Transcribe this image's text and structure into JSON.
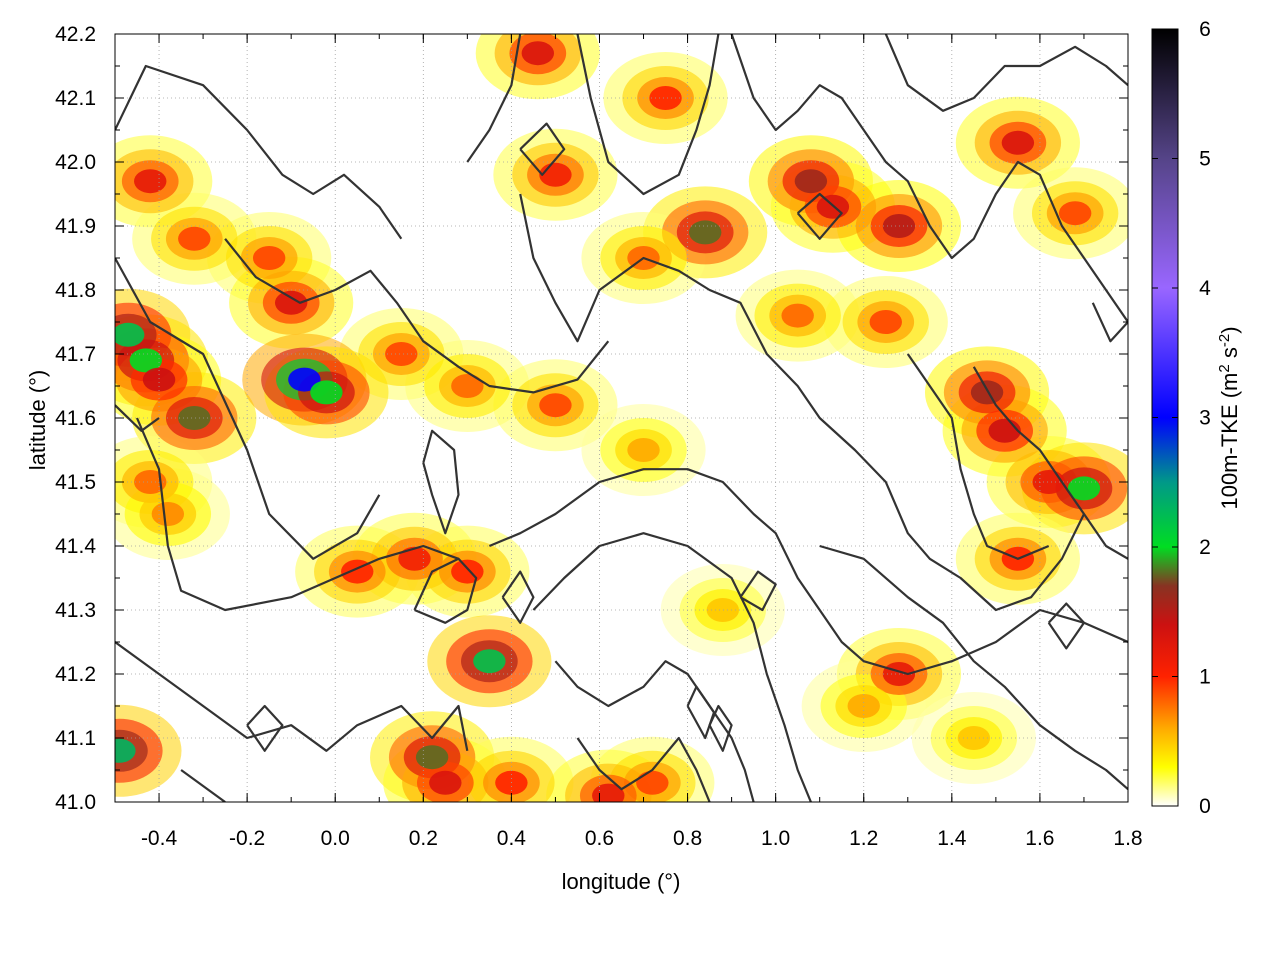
{
  "chart_data": {
    "type": "heatmap",
    "title": "",
    "xlabel": "longitude (°)",
    "ylabel": "latitude (°)",
    "xlim": [
      -0.5,
      1.8
    ],
    "ylim": [
      41.0,
      42.2
    ],
    "x_ticks": [
      "-0.4",
      "-0.2",
      "0.0",
      "0.2",
      "0.4",
      "0.6",
      "0.8",
      "1.0",
      "1.2",
      "1.4",
      "1.6",
      "1.8"
    ],
    "y_ticks": [
      "41.0",
      "41.1",
      "41.2",
      "41.3",
      "41.4",
      "41.5",
      "41.6",
      "41.7",
      "41.8",
      "41.9",
      "42.0",
      "42.1",
      "42.2"
    ],
    "grid": true,
    "colorbar": {
      "label_main": "100m-TKE (m",
      "label_sup1": "2",
      "label_mid": " s",
      "label_sup2": "-2",
      "label_end": ")",
      "range": [
        0,
        6
      ],
      "ticks": [
        "0",
        "1",
        "2",
        "3",
        "4",
        "5",
        "6"
      ],
      "stops": [
        {
          "value": 0.0,
          "color": "#ffffff"
        },
        {
          "value": 0.3,
          "color": "#ffff00"
        },
        {
          "value": 0.6,
          "color": "#ffaa00"
        },
        {
          "value": 1.0,
          "color": "#ff2200"
        },
        {
          "value": 1.4,
          "color": "#cc1111"
        },
        {
          "value": 1.7,
          "color": "#883322"
        },
        {
          "value": 2.0,
          "color": "#00dd22"
        },
        {
          "value": 2.5,
          "color": "#009988"
        },
        {
          "value": 3.0,
          "color": "#0000ff"
        },
        {
          "value": 4.0,
          "color": "#9966ff"
        },
        {
          "value": 5.0,
          "color": "#554488"
        },
        {
          "value": 6.0,
          "color": "#000000"
        }
      ]
    },
    "hotspots": [
      {
        "lon": -0.42,
        "lat": 41.97,
        "value": 1.2
      },
      {
        "lon": -0.32,
        "lat": 41.88,
        "value": 0.9
      },
      {
        "lon": -0.15,
        "lat": 41.85,
        "value": 0.9
      },
      {
        "lon": -0.1,
        "lat": 41.78,
        "value": 1.3
      },
      {
        "lon": 0.15,
        "lat": 41.7,
        "value": 0.9
      },
      {
        "lon": 0.3,
        "lat": 41.65,
        "value": 0.8
      },
      {
        "lon": -0.47,
        "lat": 41.73,
        "value": 2.2
      },
      {
        "lon": -0.43,
        "lat": 41.69,
        "value": 2.0
      },
      {
        "lon": -0.4,
        "lat": 41.66,
        "value": 1.4
      },
      {
        "lon": -0.32,
        "lat": 41.6,
        "value": 1.8
      },
      {
        "lon": -0.42,
        "lat": 41.5,
        "value": 0.8
      },
      {
        "lon": -0.38,
        "lat": 41.45,
        "value": 0.7
      },
      {
        "lon": -0.07,
        "lat": 41.66,
        "value": 3.0
      },
      {
        "lon": -0.02,
        "lat": 41.64,
        "value": 2.0
      },
      {
        "lon": 0.5,
        "lat": 41.62,
        "value": 0.9
      },
      {
        "lon": 0.7,
        "lat": 41.55,
        "value": 0.6
      },
      {
        "lon": 0.05,
        "lat": 41.36,
        "value": 1.0
      },
      {
        "lon": 0.18,
        "lat": 41.38,
        "value": 1.1
      },
      {
        "lon": 0.3,
        "lat": 41.36,
        "value": 1.0
      },
      {
        "lon": 0.35,
        "lat": 41.22,
        "value": 2.2
      },
      {
        "lon": 0.22,
        "lat": 41.07,
        "value": 1.8
      },
      {
        "lon": 0.25,
        "lat": 41.03,
        "value": 1.3
      },
      {
        "lon": 0.4,
        "lat": 41.03,
        "value": 1.0
      },
      {
        "lon": -0.49,
        "lat": 41.08,
        "value": 2.3
      },
      {
        "lon": 0.46,
        "lat": 42.17,
        "value": 1.3
      },
      {
        "lon": 0.5,
        "lat": 41.98,
        "value": 1.1
      },
      {
        "lon": 0.75,
        "lat": 42.1,
        "value": 1.0
      },
      {
        "lon": 0.84,
        "lat": 41.89,
        "value": 1.8
      },
      {
        "lon": 0.7,
        "lat": 41.85,
        "value": 0.8
      },
      {
        "lon": 1.08,
        "lat": 41.97,
        "value": 1.6
      },
      {
        "lon": 1.13,
        "lat": 41.93,
        "value": 1.3
      },
      {
        "lon": 1.28,
        "lat": 41.9,
        "value": 1.5
      },
      {
        "lon": 1.25,
        "lat": 41.75,
        "value": 0.9
      },
      {
        "lon": 1.05,
        "lat": 41.76,
        "value": 0.8
      },
      {
        "lon": 1.55,
        "lat": 42.03,
        "value": 1.3
      },
      {
        "lon": 1.68,
        "lat": 41.92,
        "value": 0.9
      },
      {
        "lon": 1.48,
        "lat": 41.64,
        "value": 1.6
      },
      {
        "lon": 1.52,
        "lat": 41.58,
        "value": 1.4
      },
      {
        "lon": 1.62,
        "lat": 41.5,
        "value": 1.2
      },
      {
        "lon": 1.7,
        "lat": 41.49,
        "value": 2.0
      },
      {
        "lon": 1.55,
        "lat": 41.38,
        "value": 1.0
      },
      {
        "lon": 1.28,
        "lat": 41.2,
        "value": 1.2
      },
      {
        "lon": 1.2,
        "lat": 41.15,
        "value": 0.6
      },
      {
        "lon": 1.45,
        "lat": 41.1,
        "value": 0.5
      },
      {
        "lon": 0.72,
        "lat": 41.03,
        "value": 0.9
      },
      {
        "lon": 0.88,
        "lat": 41.3,
        "value": 0.5
      },
      {
        "lon": 0.62,
        "lat": 41.01,
        "value": 1.2
      }
    ],
    "contours": [
      [
        [
          -0.5,
          42.05
        ],
        [
          -0.43,
          42.15
        ],
        [
          -0.3,
          42.12
        ],
        [
          -0.2,
          42.05
        ],
        [
          -0.12,
          41.98
        ],
        [
          -0.05,
          41.95
        ],
        [
          0.02,
          41.98
        ],
        [
          0.1,
          41.93
        ],
        [
          0.15,
          41.88
        ]
      ],
      [
        [
          -0.5,
          41.85
        ],
        [
          -0.42,
          41.75
        ],
        [
          -0.3,
          41.7
        ],
        [
          -0.2,
          41.55
        ],
        [
          -0.15,
          41.45
        ],
        [
          -0.05,
          41.38
        ],
        [
          0.05,
          41.42
        ],
        [
          0.1,
          41.48
        ]
      ],
      [
        [
          -0.25,
          41.88
        ],
        [
          -0.18,
          41.82
        ],
        [
          -0.08,
          41.78
        ],
        [
          0.0,
          41.8
        ],
        [
          0.08,
          41.83
        ],
        [
          0.14,
          41.78
        ],
        [
          0.2,
          41.72
        ],
        [
          0.28,
          41.68
        ],
        [
          0.35,
          41.65
        ],
        [
          0.45,
          41.64
        ],
        [
          0.55,
          41.66
        ],
        [
          0.62,
          41.72
        ]
      ],
      [
        [
          -0.45,
          41.6
        ],
        [
          -0.4,
          41.52
        ],
        [
          -0.38,
          41.4
        ],
        [
          -0.35,
          41.33
        ],
        [
          -0.25,
          41.3
        ],
        [
          -0.1,
          41.32
        ],
        [
          0.0,
          41.35
        ],
        [
          0.1,
          41.38
        ],
        [
          0.2,
          41.4
        ],
        [
          0.28,
          41.38
        ]
      ],
      [
        [
          -0.5,
          41.25
        ],
        [
          -0.4,
          41.2
        ],
        [
          -0.3,
          41.15
        ],
        [
          -0.2,
          41.1
        ],
        [
          -0.1,
          41.12
        ],
        [
          -0.02,
          41.08
        ],
        [
          0.05,
          41.12
        ],
        [
          0.15,
          41.15
        ],
        [
          0.22,
          41.1
        ],
        [
          0.28,
          41.15
        ],
        [
          0.3,
          41.08
        ]
      ],
      [
        [
          -0.35,
          41.05
        ],
        [
          -0.25,
          41.0
        ]
      ],
      [
        [
          0.2,
          41.53
        ],
        [
          0.22,
          41.48
        ],
        [
          0.25,
          41.42
        ],
        [
          0.28,
          41.48
        ],
        [
          0.27,
          41.55
        ],
        [
          0.22,
          41.58
        ],
        [
          0.2,
          41.53
        ]
      ],
      [
        [
          0.42,
          41.95
        ],
        [
          0.45,
          41.85
        ],
        [
          0.5,
          41.78
        ],
        [
          0.55,
          41.72
        ],
        [
          0.6,
          41.8
        ],
        [
          0.7,
          41.85
        ],
        [
          0.78,
          41.83
        ],
        [
          0.85,
          41.8
        ],
        [
          0.92,
          41.78
        ],
        [
          0.98,
          41.7
        ],
        [
          1.05,
          41.65
        ],
        [
          1.1,
          41.6
        ],
        [
          1.18,
          41.55
        ],
        [
          1.25,
          41.5
        ],
        [
          1.3,
          41.42
        ],
        [
          1.35,
          41.38
        ],
        [
          1.42,
          41.35
        ],
        [
          1.5,
          41.3
        ],
        [
          1.58,
          41.32
        ],
        [
          1.65,
          41.38
        ],
        [
          1.7,
          41.45
        ]
      ],
      [
        [
          0.3,
          42.0
        ],
        [
          0.35,
          42.05
        ],
        [
          0.4,
          42.12
        ],
        [
          0.42,
          42.2
        ]
      ],
      [
        [
          0.55,
          42.2
        ],
        [
          0.58,
          42.1
        ],
        [
          0.62,
          42.0
        ],
        [
          0.7,
          41.95
        ],
        [
          0.78,
          41.98
        ],
        [
          0.82,
          42.05
        ],
        [
          0.85,
          42.12
        ],
        [
          0.87,
          42.2
        ]
      ],
      [
        [
          0.9,
          42.2
        ],
        [
          0.95,
          42.1
        ],
        [
          1.0,
          42.05
        ],
        [
          1.05,
          42.08
        ],
        [
          1.1,
          42.12
        ],
        [
          1.15,
          42.1
        ],
        [
          1.2,
          42.05
        ],
        [
          1.25,
          42.0
        ],
        [
          1.3,
          41.97
        ],
        [
          1.35,
          41.9
        ],
        [
          1.4,
          41.85
        ],
        [
          1.45,
          41.88
        ],
        [
          1.5,
          41.95
        ],
        [
          1.55,
          42.0
        ],
        [
          1.6,
          41.98
        ],
        [
          1.65,
          41.9
        ],
        [
          1.7,
          41.85
        ],
        [
          1.75,
          41.8
        ],
        [
          1.8,
          41.75
        ]
      ],
      [
        [
          1.25,
          42.2
        ],
        [
          1.3,
          42.12
        ],
        [
          1.38,
          42.08
        ],
        [
          1.45,
          42.1
        ],
        [
          1.52,
          42.15
        ],
        [
          1.6,
          42.15
        ],
        [
          1.68,
          42.18
        ],
        [
          1.75,
          42.15
        ],
        [
          1.8,
          42.12
        ]
      ],
      [
        [
          0.35,
          41.4
        ],
        [
          0.42,
          41.42
        ],
        [
          0.5,
          41.45
        ],
        [
          0.6,
          41.5
        ],
        [
          0.7,
          41.52
        ],
        [
          0.8,
          41.52
        ],
        [
          0.88,
          41.5
        ],
        [
          0.95,
          41.45
        ],
        [
          1.0,
          41.42
        ],
        [
          1.05,
          41.35
        ],
        [
          1.1,
          41.3
        ],
        [
          1.15,
          41.25
        ],
        [
          1.2,
          41.22
        ],
        [
          1.3,
          41.2
        ],
        [
          1.4,
          41.22
        ],
        [
          1.5,
          41.25
        ],
        [
          1.6,
          41.3
        ],
        [
          1.7,
          41.28
        ],
        [
          1.8,
          41.25
        ]
      ],
      [
        [
          0.45,
          41.3
        ],
        [
          0.52,
          41.35
        ],
        [
          0.6,
          41.4
        ],
        [
          0.7,
          41.42
        ],
        [
          0.8,
          41.4
        ],
        [
          0.9,
          41.35
        ],
        [
          0.95,
          41.28
        ],
        [
          0.98,
          41.2
        ],
        [
          1.02,
          41.12
        ],
        [
          1.05,
          41.05
        ],
        [
          1.08,
          41.0
        ]
      ],
      [
        [
          0.5,
          41.22
        ],
        [
          0.55,
          41.18
        ],
        [
          0.62,
          41.15
        ],
        [
          0.7,
          41.18
        ],
        [
          0.75,
          41.22
        ],
        [
          0.8,
          41.2
        ],
        [
          0.85,
          41.15
        ],
        [
          0.9,
          41.1
        ],
        [
          0.93,
          41.05
        ],
        [
          0.95,
          41.0
        ]
      ],
      [
        [
          0.55,
          41.1
        ],
        [
          0.6,
          41.05
        ],
        [
          0.65,
          41.02
        ],
        [
          0.72,
          41.05
        ],
        [
          0.78,
          41.1
        ],
        [
          0.82,
          41.05
        ],
        [
          0.85,
          41.0
        ]
      ],
      [
        [
          1.1,
          41.4
        ],
        [
          1.2,
          41.38
        ],
        [
          1.3,
          41.32
        ],
        [
          1.38,
          41.28
        ],
        [
          1.45,
          41.22
        ],
        [
          1.52,
          41.18
        ],
        [
          1.6,
          41.12
        ],
        [
          1.68,
          41.08
        ],
        [
          1.75,
          41.05
        ],
        [
          1.8,
          41.02
        ]
      ],
      [
        [
          1.45,
          41.68
        ],
        [
          1.5,
          41.62
        ],
        [
          1.55,
          41.58
        ],
        [
          1.6,
          41.55
        ],
        [
          1.65,
          41.5
        ],
        [
          1.7,
          41.45
        ],
        [
          1.75,
          41.4
        ],
        [
          1.8,
          41.38
        ]
      ],
      [
        [
          1.3,
          41.7
        ],
        [
          1.35,
          41.65
        ],
        [
          1.4,
          41.6
        ],
        [
          1.42,
          41.52
        ],
        [
          1.45,
          41.45
        ],
        [
          1.48,
          41.4
        ],
        [
          1.55,
          41.38
        ],
        [
          1.62,
          41.4
        ]
      ],
      [
        [
          0.18,
          41.3
        ],
        [
          0.25,
          41.28
        ],
        [
          0.3,
          41.3
        ],
        [
          0.32,
          41.35
        ],
        [
          0.28,
          41.38
        ],
        [
          0.22,
          41.36
        ],
        [
          0.18,
          41.3
        ]
      ],
      [
        [
          0.38,
          41.32
        ],
        [
          0.42,
          41.28
        ],
        [
          0.45,
          41.32
        ],
        [
          0.42,
          41.36
        ],
        [
          0.38,
          41.32
        ]
      ],
      [
        [
          0.92,
          41.32
        ],
        [
          0.97,
          41.3
        ],
        [
          1.0,
          41.34
        ],
        [
          0.96,
          41.36
        ],
        [
          0.92,
          41.32
        ]
      ],
      [
        [
          0.8,
          41.15
        ],
        [
          0.84,
          41.1
        ],
        [
          0.86,
          41.14
        ],
        [
          0.82,
          41.18
        ],
        [
          0.8,
          41.15
        ]
      ],
      [
        [
          1.05,
          41.92
        ],
        [
          1.1,
          41.88
        ],
        [
          1.15,
          41.92
        ],
        [
          1.1,
          41.95
        ],
        [
          1.05,
          41.92
        ]
      ],
      [
        [
          0.42,
          42.02
        ],
        [
          0.47,
          41.98
        ],
        [
          0.52,
          42.02
        ],
        [
          0.48,
          42.06
        ],
        [
          0.42,
          42.02
        ]
      ],
      [
        [
          1.62,
          41.28
        ],
        [
          1.66,
          41.24
        ],
        [
          1.7,
          41.28
        ],
        [
          1.66,
          41.31
        ],
        [
          1.62,
          41.28
        ]
      ],
      [
        [
          -0.2,
          41.12
        ],
        [
          -0.16,
          41.08
        ],
        [
          -0.12,
          41.12
        ],
        [
          -0.16,
          41.15
        ],
        [
          -0.2,
          41.12
        ]
      ],
      [
        [
          0.85,
          41.12
        ],
        [
          0.88,
          41.08
        ],
        [
          0.9,
          41.12
        ],
        [
          0.87,
          41.15
        ],
        [
          0.85,
          41.12
        ]
      ],
      [
        [
          1.72,
          41.78
        ],
        [
          1.76,
          41.72
        ],
        [
          1.8,
          41.75
        ]
      ],
      [
        [
          -0.5,
          41.62
        ],
        [
          -0.44,
          41.58
        ],
        [
          -0.4,
          41.6
        ]
      ]
    ]
  }
}
